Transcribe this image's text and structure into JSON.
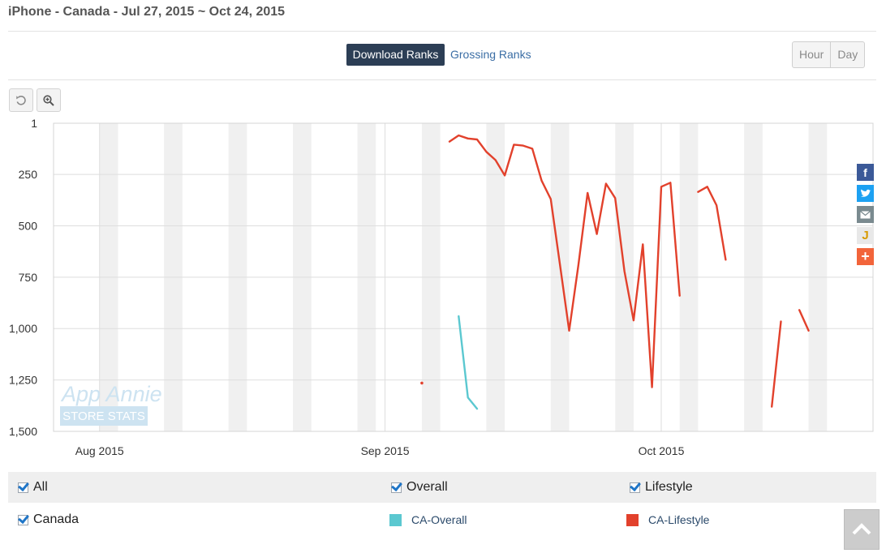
{
  "header": {
    "title": "iPhone - Canada - Jul 27, 2015 ~ Oct 24, 2015"
  },
  "rank_tabs": {
    "active": "Download Ranks",
    "inactive": "Grossing Ranks"
  },
  "granularity": {
    "hour": "Hour",
    "day": "Day",
    "selected": "Day"
  },
  "toolbar": {
    "reset_icon": "undo-icon",
    "zoom_icon": "zoom-in-icon"
  },
  "share": [
    "facebook-icon",
    "twitter-icon",
    "email-icon",
    "bookmark-icon",
    "add-icon"
  ],
  "watermark": {
    "line1": "App Annie",
    "line2": "STORE STATS"
  },
  "chart_data": {
    "type": "line",
    "y_reversed": true,
    "ylim": [
      1500,
      1
    ],
    "y_ticks": [
      {
        "label": "1",
        "value": 1
      },
      {
        "label": "250",
        "value": 250
      },
      {
        "label": "500",
        "value": 500
      },
      {
        "label": "750",
        "value": 750
      },
      {
        "label": "1,000",
        "value": 1000
      },
      {
        "label": "1,250",
        "value": 1250
      },
      {
        "label": "1,500",
        "value": 1500
      }
    ],
    "x_range": [
      "2015-07-27",
      "2015-10-24"
    ],
    "x_ticks": [
      {
        "label": "Aug 2015",
        "date": "2015-08-01"
      },
      {
        "label": "Sep 2015",
        "date": "2015-09-01"
      },
      {
        "label": "Oct 2015",
        "date": "2015-10-01"
      }
    ],
    "weekend_bands": [
      "2015-08-01",
      "2015-08-08",
      "2015-08-15",
      "2015-08-22",
      "2015-08-29",
      "2015-09-05",
      "2015-09-12",
      "2015-09-19",
      "2015-09-26",
      "2015-10-03",
      "2015-10-10",
      "2015-10-17"
    ],
    "series": [
      {
        "name": "CA-Overall",
        "color": "#5bc8d0",
        "points": [
          [
            "2015-09-09",
            940
          ],
          [
            "2015-09-10",
            1335
          ],
          [
            "2015-09-11",
            1390
          ]
        ]
      },
      {
        "name": "CA-Lifestyle",
        "color": "#e2412c",
        "points": [
          [
            "2015-09-05",
            1265
          ],
          null,
          [
            "2015-09-08",
            90
          ],
          [
            "2015-09-09",
            60
          ],
          [
            "2015-09-10",
            75
          ],
          [
            "2015-09-11",
            80
          ],
          [
            "2015-09-12",
            140
          ],
          [
            "2015-09-13",
            180
          ],
          [
            "2015-09-14",
            255
          ],
          [
            "2015-09-15",
            105
          ],
          [
            "2015-09-16",
            110
          ],
          [
            "2015-09-17",
            125
          ],
          [
            "2015-09-18",
            280
          ],
          [
            "2015-09-19",
            370
          ],
          [
            "2015-09-20",
            690
          ],
          [
            "2015-09-21",
            1010
          ],
          [
            "2015-09-22",
            690
          ],
          [
            "2015-09-23",
            340
          ],
          [
            "2015-09-24",
            540
          ],
          [
            "2015-09-25",
            295
          ],
          [
            "2015-09-26",
            365
          ],
          [
            "2015-09-27",
            720
          ],
          [
            "2015-09-28",
            960
          ],
          [
            "2015-09-29",
            590
          ],
          [
            "2015-09-30",
            1285
          ],
          [
            "2015-10-01",
            310
          ],
          [
            "2015-10-02",
            290
          ],
          [
            "2015-10-03",
            840
          ],
          null,
          [
            "2015-10-05",
            335
          ],
          [
            "2015-10-06",
            310
          ],
          [
            "2015-10-07",
            400
          ],
          [
            "2015-10-08",
            665
          ],
          null,
          [
            "2015-10-13",
            1380
          ],
          [
            "2015-10-14",
            965
          ],
          null,
          [
            "2015-10-16",
            910
          ],
          [
            "2015-10-17",
            1010
          ]
        ]
      }
    ]
  },
  "filters": {
    "row1": {
      "all": "All",
      "overall": "Overall",
      "lifestyle": "Lifestyle"
    },
    "row2": {
      "country": "Canada",
      "legend1": "CA-Overall",
      "legend2": "CA-Lifestyle"
    }
  },
  "colors": {
    "overall": "#5bc8d0",
    "lifestyle": "#e2412c",
    "accent": "#2c3e55"
  },
  "scroll_top_icon": "chevron-up-icon"
}
